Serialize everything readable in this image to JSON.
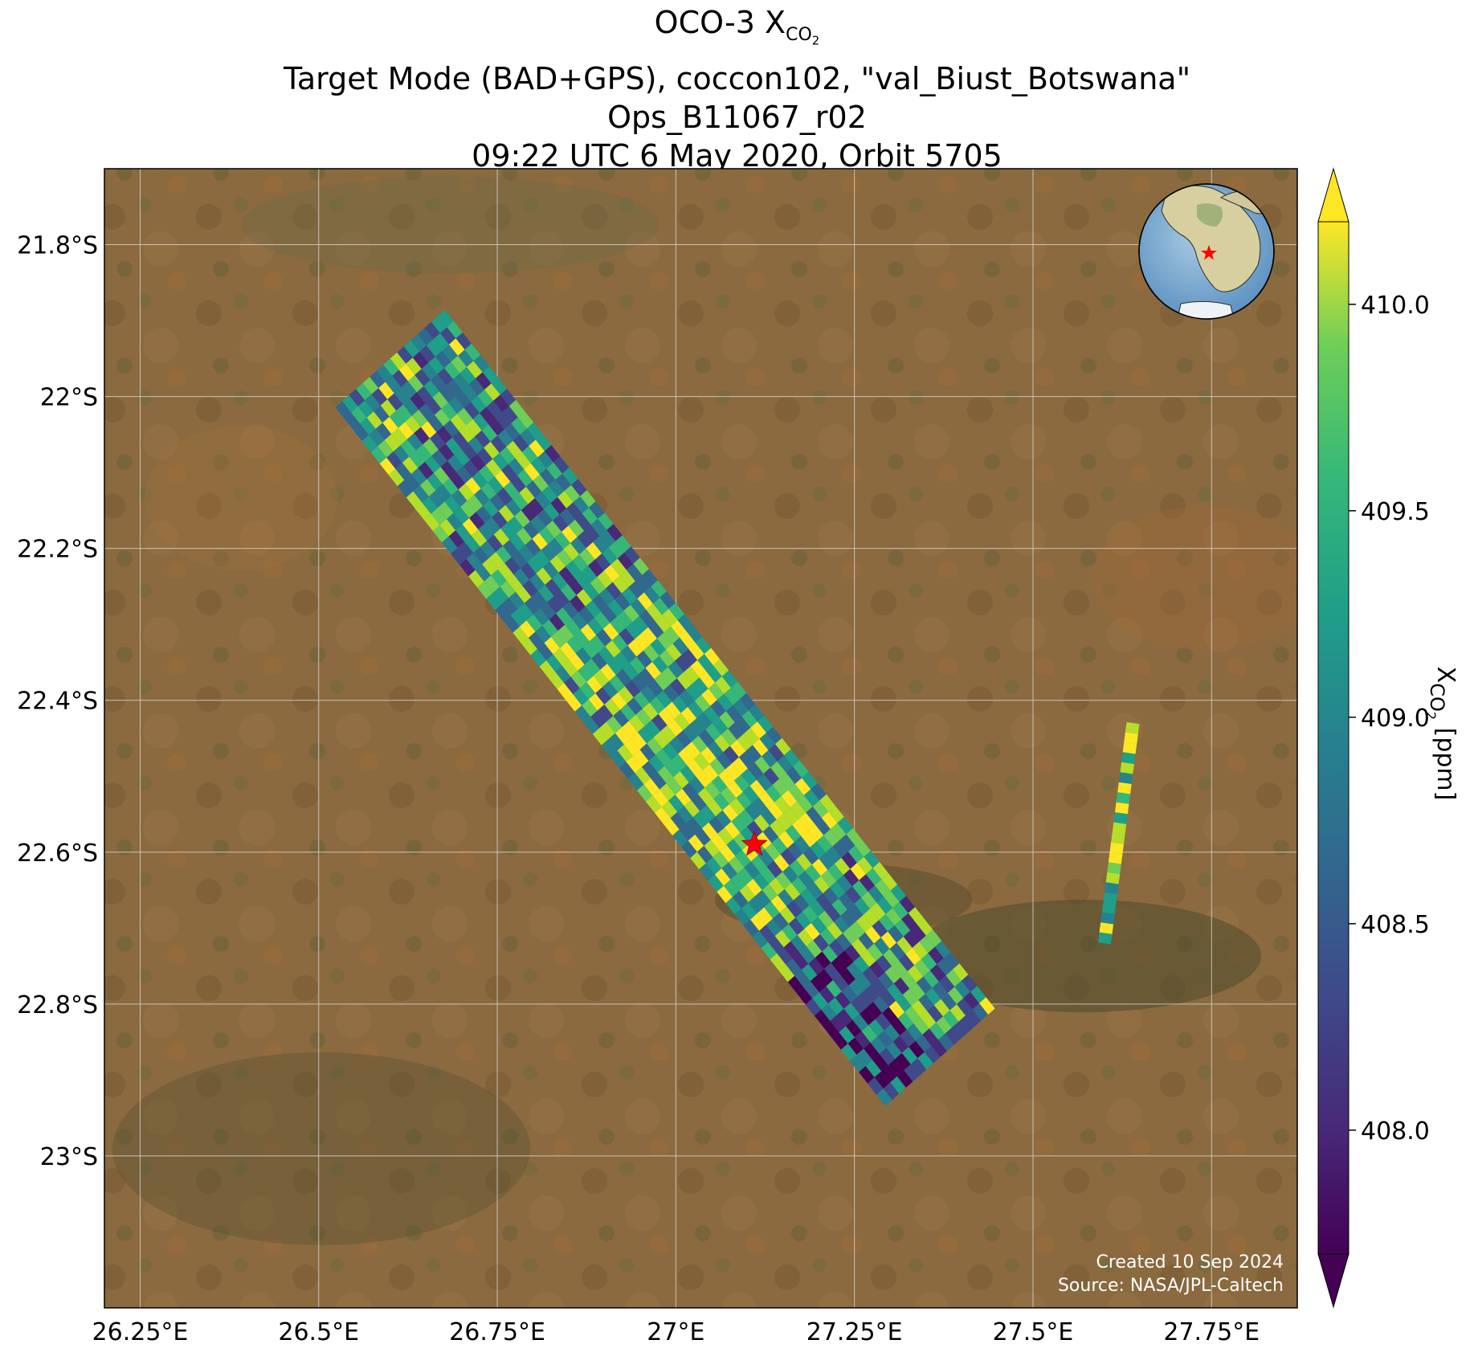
{
  "title": {
    "line1_prefix": "OCO-3 X",
    "line1_sub": "CO",
    "line1_subsub": "2",
    "line2": "Target Mode (BAD+GPS), coccon102, \"val_Biust_Botswana\"",
    "line3": "Ops_B11067_r02",
    "line4": "09:22 UTC 6 May 2020, Orbit 5705"
  },
  "axes": {
    "lon_ticks": [
      {
        "value": 26.25,
        "label": "26.25°E"
      },
      {
        "value": 26.5,
        "label": "26.5°E"
      },
      {
        "value": 26.75,
        "label": "26.75°E"
      },
      {
        "value": 27.0,
        "label": "27°E"
      },
      {
        "value": 27.25,
        "label": "27.25°E"
      },
      {
        "value": 27.5,
        "label": "27.5°E"
      },
      {
        "value": 27.75,
        "label": "27.75°E"
      }
    ],
    "lat_ticks": [
      {
        "value": -21.8,
        "label": "21.8°S"
      },
      {
        "value": -22.0,
        "label": "22°S"
      },
      {
        "value": -22.2,
        "label": "22.2°S"
      },
      {
        "value": -22.4,
        "label": "22.4°S"
      },
      {
        "value": -22.6,
        "label": "22.6°S"
      },
      {
        "value": -22.8,
        "label": "22.8°S"
      },
      {
        "value": -23.0,
        "label": "23°S"
      }
    ],
    "lon_range": [
      26.2,
      27.87
    ],
    "lat_range": [
      -21.7,
      -23.2
    ],
    "grid": true
  },
  "colorbar": {
    "colormap": "viridis",
    "range": [
      407.7,
      410.2
    ],
    "extend": "both",
    "ticks": [
      {
        "value": 408.0,
        "label": "408.0"
      },
      {
        "value": 408.5,
        "label": "408.5"
      },
      {
        "value": 409.0,
        "label": "409.0"
      },
      {
        "value": 409.5,
        "label": "409.5"
      },
      {
        "value": 410.0,
        "label": "410.0"
      }
    ],
    "label_prefix": "X",
    "label_sub": "CO",
    "label_subsub": "2",
    "label_suffix": " [ppm]"
  },
  "target_site": {
    "lon": 27.11,
    "lat": -22.59,
    "marker": "red-star",
    "color": "#ff0000"
  },
  "inset_globe": {
    "region": "Africa",
    "marker": "red-star"
  },
  "credits": {
    "line1": "Created 10 Sep 2024",
    "line2": "Source: NASA/JPL-Caltech"
  },
  "chart_data": {
    "type": "heatmap",
    "description_units": "XCO2 ppm",
    "swaths": [
      {
        "name": "main",
        "start_lon": 26.6,
        "start_lat": -21.95,
        "end_lon": 27.37,
        "end_lat": -22.87,
        "across_track_deg": 0.2
      },
      {
        "name": "east",
        "start_lon": 27.64,
        "start_lat": -22.43,
        "end_lon": 27.6,
        "end_lat": -22.72,
        "across_track_deg": 0.018
      }
    ]
  }
}
